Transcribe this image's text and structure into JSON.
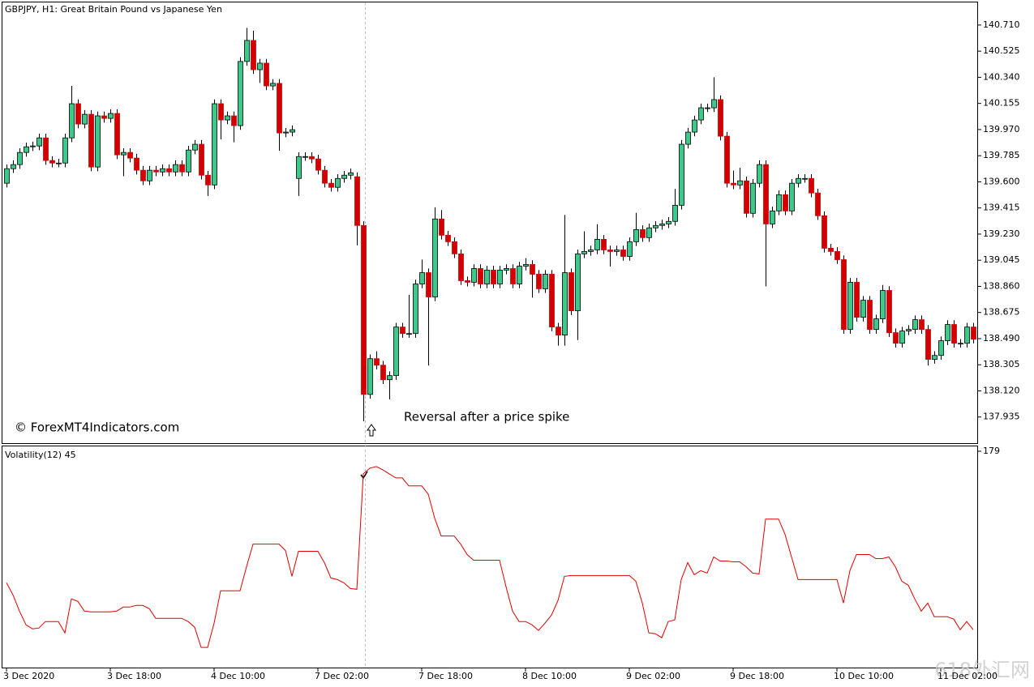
{
  "chart_data": [
    {
      "type": "candlestick",
      "title": "GBPJPY, H1:  Great Britain Pound vs Japanese Yen",
      "annotations": [
        "© ForexMT4Indicators.com",
        "Reversal after a price spike"
      ],
      "up_color": "#3cc98a",
      "down_color": "#d40000",
      "xlim": [
        -0.5,
        149.5
      ],
      "ylim": [
        137.75,
        140.87
      ],
      "yticks": [
        {
          "value": 140.71,
          "label": "140.710"
        },
        140.525,
        {
          "value": 140.34,
          "label": "140.340"
        },
        140.155,
        {
          "value": 139.97,
          "label": "139.970"
        },
        139.785,
        {
          "value": 139.6,
          "label": "139.600"
        },
        139.415,
        {
          "value": 139.23,
          "label": "139.230"
        },
        139.045,
        {
          "value": 138.86,
          "label": "138.860"
        },
        138.675,
        {
          "value": 138.49,
          "label": "138.490"
        },
        138.305,
        {
          "value": 138.12,
          "label": "138.120"
        },
        137.935
      ],
      "open": [
        139.59,
        139.693,
        139.722,
        139.808,
        139.848,
        139.854,
        139.911,
        139.751,
        139.733,
        139.733,
        139.911,
        140.153,
        140.009,
        140.078,
        139.705,
        140.067,
        140.049,
        140.084,
        139.791,
        139.808,
        139.768,
        139.682,
        139.607,
        139.682,
        139.67,
        139.693,
        139.67,
        139.722,
        139.67,
        139.825,
        139.866,
        139.647,
        139.578,
        140.153,
        140.038,
        140.067,
        139.998,
        140.452,
        140.601,
        140.394,
        140.44,
        140.279,
        140.297,
        139.946,
        139.952,
        139.624,
        139.779,
        139.779,
        139.762,
        139.682,
        139.59,
        139.561,
        139.624,
        139.647,
        139.636,
        139.291,
        138.095,
        138.348,
        138.302,
        138.199,
        138.228,
        138.572,
        138.526,
        138.526,
        138.877,
        138.957,
        138.785,
        139.337,
        139.222,
        139.176,
        139.09,
        138.9,
        138.889,
        138.986,
        138.877,
        138.975,
        138.877,
        138.975,
        138.986,
        138.877,
        139.003,
        139.015,
        138.946,
        138.843,
        138.946,
        138.572,
        138.515,
        138.957,
        138.687,
        139.09,
        139.107,
        139.118,
        139.193,
        139.118,
        139.107,
        139.118,
        139.072,
        139.176,
        139.262,
        139.205,
        139.274,
        139.291,
        139.302,
        139.32,
        139.434,
        139.866,
        139.952,
        140.038,
        140.124,
        140.124,
        140.182,
        139.923,
        139.59,
        139.578,
        139.607,
        139.377,
        139.59,
        139.722,
        139.302,
        139.394,
        139.509,
        139.394,
        139.59,
        139.624,
        139.624,
        139.521,
        139.36,
        139.13,
        139.107,
        139.049,
        138.555,
        138.889,
        138.641,
        138.762,
        138.555,
        138.63,
        138.831,
        138.532,
        138.457,
        138.544,
        138.555,
        138.624,
        138.555,
        138.343,
        138.371,
        138.475,
        138.59,
        138.457,
        138.457,
        138.572
      ],
      "high": [
        139.723,
        139.752,
        139.838,
        139.878,
        139.884,
        139.941,
        139.941,
        139.781,
        139.763,
        139.941,
        140.279,
        140.183,
        140.108,
        140.108,
        140.097,
        140.097,
        140.114,
        140.114,
        139.838,
        139.838,
        139.798,
        139.712,
        139.712,
        139.712,
        139.723,
        139.723,
        139.752,
        139.752,
        139.855,
        139.896,
        139.896,
        139.677,
        140.183,
        140.183,
        140.097,
        140.097,
        140.482,
        140.69,
        140.67,
        140.47,
        140.47,
        140.327,
        140.327,
        139.982,
        139.999,
        139.809,
        139.809,
        139.809,
        139.792,
        139.712,
        139.62,
        139.654,
        139.677,
        139.694,
        139.666,
        139.321,
        138.378,
        138.4,
        138.332,
        138.258,
        138.602,
        138.602,
        138.8,
        138.907,
        139.05,
        138.987,
        139.42,
        139.4,
        139.252,
        139.206,
        139.12,
        138.93,
        139.016,
        139.016,
        139.005,
        139.005,
        139.005,
        139.016,
        139.016,
        139.033,
        139.06,
        139.045,
        138.976,
        138.976,
        138.976,
        138.602,
        139.366,
        138.987,
        139.12,
        139.25,
        139.148,
        139.3,
        139.223,
        139.148,
        139.148,
        139.148,
        139.206,
        139.38,
        139.292,
        139.304,
        139.321,
        139.332,
        139.35,
        139.55,
        139.896,
        139.982,
        140.068,
        140.154,
        140.154,
        140.34,
        140.212,
        139.953,
        139.68,
        139.7,
        139.637,
        139.62,
        139.752,
        139.752,
        139.424,
        139.539,
        139.539,
        139.62,
        139.654,
        139.654,
        139.654,
        139.551,
        139.39,
        139.16,
        139.137,
        139.079,
        138.919,
        138.919,
        138.792,
        138.792,
        138.66,
        138.87,
        138.861,
        138.562,
        138.574,
        138.585,
        138.654,
        138.654,
        138.585,
        138.401,
        138.505,
        138.62,
        138.62,
        138.487,
        138.602,
        138.602
      ],
      "low": [
        139.56,
        139.663,
        139.692,
        139.778,
        139.818,
        139.824,
        139.721,
        139.703,
        139.703,
        139.703,
        139.881,
        139.979,
        139.979,
        139.675,
        139.675,
        140.019,
        140.019,
        139.761,
        139.64,
        139.738,
        139.652,
        139.577,
        139.577,
        139.64,
        139.64,
        139.64,
        139.64,
        139.64,
        139.64,
        139.795,
        139.617,
        139.5,
        139.548,
        139.9,
        140.008,
        139.88,
        139.968,
        140.422,
        140.364,
        140.3,
        140.249,
        140.249,
        139.82,
        139.916,
        139.922,
        139.5,
        139.749,
        139.732,
        139.652,
        139.56,
        139.531,
        139.531,
        139.594,
        139.617,
        139.15,
        137.905,
        138.065,
        138.272,
        138.169,
        138.06,
        138.198,
        138.496,
        138.496,
        138.496,
        138.847,
        138.3,
        138.755,
        139.192,
        139.146,
        139.06,
        138.87,
        138.859,
        138.859,
        138.847,
        138.847,
        138.847,
        138.847,
        138.945,
        138.847,
        138.847,
        138.973,
        138.78,
        138.813,
        138.813,
        138.542,
        138.44,
        138.44,
        138.657,
        138.48,
        139.06,
        139.077,
        139.088,
        139.088,
        139.0,
        139.077,
        139.042,
        139.042,
        139.146,
        139.175,
        139.175,
        139.244,
        139.261,
        139.272,
        139.29,
        139.404,
        139.836,
        139.922,
        140.008,
        140.094,
        140.094,
        139.893,
        139.56,
        139.548,
        139.548,
        139.347,
        139.347,
        139.56,
        138.86,
        139.272,
        139.364,
        139.364,
        139.364,
        139.56,
        139.594,
        139.491,
        139.33,
        139.1,
        139.077,
        139.019,
        138.525,
        138.525,
        138.611,
        138.611,
        138.525,
        138.525,
        138.6,
        138.502,
        138.427,
        138.427,
        138.514,
        138.525,
        138.525,
        138.3,
        138.313,
        138.341,
        138.445,
        138.427,
        138.427,
        138.427,
        138.456
      ],
      "close": [
        139.693,
        139.722,
        139.808,
        139.848,
        139.854,
        139.911,
        139.751,
        139.733,
        139.733,
        139.911,
        140.153,
        140.009,
        140.078,
        139.705,
        140.067,
        140.049,
        140.084,
        139.791,
        139.808,
        139.768,
        139.682,
        139.607,
        139.682,
        139.67,
        139.693,
        139.67,
        139.722,
        139.67,
        139.825,
        139.866,
        139.647,
        139.578,
        140.153,
        140.038,
        140.067,
        139.998,
        140.452,
        140.601,
        140.394,
        140.44,
        140.279,
        140.297,
        139.946,
        139.952,
        139.969,
        139.779,
        139.779,
        139.762,
        139.682,
        139.59,
        139.561,
        139.624,
        139.647,
        139.664,
        139.291,
        138.095,
        138.348,
        138.302,
        138.199,
        138.228,
        138.572,
        138.526,
        138.526,
        138.877,
        138.957,
        138.785,
        139.337,
        139.222,
        139.176,
        139.09,
        138.9,
        138.889,
        138.986,
        138.877,
        138.975,
        138.877,
        138.975,
        138.986,
        138.877,
        139.003,
        139.015,
        138.946,
        138.843,
        138.946,
        138.572,
        138.515,
        138.957,
        138.687,
        139.09,
        139.107,
        139.118,
        139.193,
        139.118,
        139.107,
        139.118,
        139.072,
        139.176,
        139.262,
        139.205,
        139.274,
        139.291,
        139.302,
        139.32,
        139.434,
        139.866,
        139.952,
        140.038,
        140.124,
        140.124,
        140.182,
        139.923,
        139.59,
        139.578,
        139.607,
        139.377,
        139.59,
        139.722,
        139.302,
        139.394,
        139.509,
        139.394,
        139.59,
        139.624,
        139.624,
        139.521,
        139.36,
        139.13,
        139.107,
        139.049,
        138.555,
        138.889,
        138.641,
        138.762,
        138.555,
        138.63,
        138.831,
        138.532,
        138.457,
        138.544,
        138.555,
        138.624,
        138.555,
        138.343,
        138.371,
        138.475,
        138.59,
        138.457,
        138.457,
        138.572,
        138.486
      ]
    },
    {
      "type": "line",
      "title": "Volatility(12) 45",
      "color": "#e00000",
      "xlim": [
        -0.5,
        149.5
      ],
      "ylim": [
        45,
        182
      ],
      "yticks": [
        179
      ],
      "xticks": [
        {
          "value": 0,
          "label": "3 Dec 2020"
        },
        {
          "value": 16,
          "label": "3 Dec 18:00"
        },
        {
          "value": 32,
          "label": "4 Dec 10:00"
        },
        {
          "value": 48,
          "label": "7 Dec 02:00"
        },
        {
          "value": 64,
          "label": "7 Dec 18:00"
        },
        {
          "value": 80,
          "label": "8 Dec 10:00"
        },
        {
          "value": 96,
          "label": "9 Dec 02:00"
        },
        {
          "value": 112,
          "label": "9 Dec 18:00"
        },
        {
          "value": 128,
          "label": "10 Dec 10:00"
        },
        {
          "value": 144,
          "label": "11 Dec 02:00"
        }
      ],
      "values": [
        97.5,
        90,
        80,
        71.5,
        69,
        69.5,
        73.5,
        73.5,
        73.5,
        66.5,
        87.5,
        86,
        80,
        79.5,
        79.5,
        79.5,
        79.5,
        80,
        82.5,
        82.5,
        83.5,
        83.5,
        81.5,
        75.5,
        75.5,
        75.5,
        75.5,
        75.5,
        73.5,
        70,
        57.5,
        57.5,
        72.5,
        92.5,
        92.5,
        92.5,
        92.5,
        107.5,
        121.5,
        121.5,
        121.5,
        121.5,
        121.5,
        117.5,
        101.5,
        117,
        117,
        117,
        117,
        110,
        100.5,
        99.5,
        97.5,
        94,
        93.5,
        165,
        168.5,
        169.5,
        167.5,
        165,
        162.5,
        162.5,
        157.5,
        157.5,
        157.5,
        152.5,
        137.5,
        126.5,
        126.5,
        126.5,
        121.5,
        115,
        111.5,
        111.5,
        111.5,
        111.5,
        111.5,
        95,
        80,
        73.5,
        73.5,
        71.5,
        68,
        72.5,
        77.5,
        86.5,
        101.5,
        102,
        102,
        102,
        102,
        102,
        102,
        102,
        102,
        102,
        102,
        98.5,
        85,
        66.5,
        66,
        63.5,
        73.5,
        74.5,
        99.5,
        110,
        102.5,
        105,
        103.5,
        113.5,
        111,
        111,
        110.5,
        110.5,
        107.5,
        103.5,
        103,
        137,
        137,
        137,
        127.5,
        113.5,
        99.5,
        99.5,
        99.5,
        99.5,
        99.5,
        99.5,
        99.5,
        85,
        105,
        115,
        115,
        115,
        112.5,
        112.5,
        113.5,
        107.5,
        98.5,
        96,
        87.5,
        80,
        85,
        76.5,
        76.5,
        76.5,
        75,
        68.5,
        73.5,
        68.5
      ]
    }
  ],
  "watermark": "618外汇网"
}
